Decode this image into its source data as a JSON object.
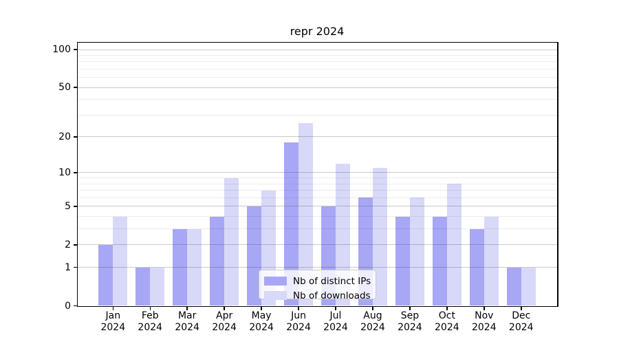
{
  "chart_data": {
    "type": "bar",
    "title": "repr 2024",
    "xlabel": "",
    "ylabel": "",
    "x_axis": {
      "months": [
        "Jan",
        "Feb",
        "Mar",
        "Apr",
        "May",
        "Jun",
        "Jul",
        "Aug",
        "Sep",
        "Oct",
        "Nov",
        "Dec"
      ],
      "year": "2024"
    },
    "y_axis": {
      "scale": "log1p",
      "major_ticks": [
        100,
        50,
        20,
        10,
        5,
        2,
        1,
        0
      ],
      "minor_ticks": [
        3,
        4,
        6,
        7,
        8,
        9,
        30,
        40,
        60,
        70,
        80,
        90
      ],
      "ylim": [
        0,
        113
      ]
    },
    "series": [
      {
        "name": "Nb of distinct IPs",
        "color": "#a7a7f5",
        "values": [
          2,
          1,
          3,
          4,
          5,
          18,
          5,
          6,
          4,
          4,
          3,
          1
        ]
      },
      {
        "name": "Nb of downloads",
        "color": "#d8d8f8",
        "values": [
          4,
          1,
          3,
          9,
          7,
          26,
          12,
          11,
          6,
          8,
          4,
          1
        ]
      }
    ],
    "legend": {
      "position": "bottom-center"
    },
    "grid": "both"
  },
  "colors": {
    "background": "#ffffff",
    "spine": "#000000",
    "grid_major": "rgba(60,60,60,0.28)",
    "grid_minor": "rgba(60,60,60,0.09)"
  }
}
